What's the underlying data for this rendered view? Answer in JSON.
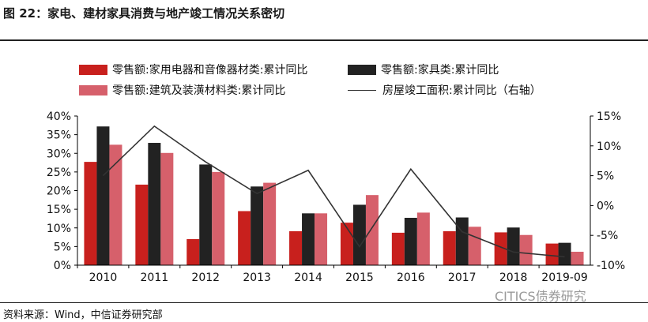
{
  "header": {
    "title": "图 22：家电、建材家具消费与地产竣工情况关系密切"
  },
  "footer": {
    "source": "资料来源：Wind，中信证券研究部",
    "watermark": "CITICS债券研究"
  },
  "colors": {
    "appliance": "#c8201d",
    "furniture": "#222222",
    "building": "#d6606b",
    "completion": "#333333"
  },
  "chart_data": {
    "type": "bar",
    "categories": [
      "2010",
      "2011",
      "2012",
      "2013",
      "2014",
      "2015",
      "2016",
      "2017",
      "2018",
      "2019-09"
    ],
    "series": [
      {
        "name": "零售额:家用电器和音像器材类:累计同比",
        "values": [
          27.7,
          21.6,
          7.0,
          14.5,
          9.1,
          11.4,
          8.7,
          9.1,
          8.8,
          5.8
        ],
        "axis": "left"
      },
      {
        "name": "零售额:家具类:累计同比",
        "values": [
          37.2,
          32.8,
          27.0,
          21.1,
          13.9,
          16.2,
          12.7,
          12.8,
          10.1,
          6.0
        ],
        "axis": "left"
      },
      {
        "name": "零售额:建筑及装潢材料类:累计同比",
        "values": [
          32.3,
          30.1,
          25.0,
          22.1,
          13.9,
          18.8,
          14.1,
          10.3,
          8.1,
          3.6
        ],
        "axis": "left"
      },
      {
        "name": "房屋竣工面积:累计同比（右轴）",
        "type": "line",
        "values": [
          5.0,
          13.3,
          7.3,
          2.0,
          5.9,
          -6.9,
          6.1,
          -4.4,
          -7.8,
          -8.6
        ],
        "axis": "right"
      }
    ],
    "yticks_left": [
      "0%",
      "5%",
      "10%",
      "15%",
      "20%",
      "25%",
      "30%",
      "35%",
      "40%"
    ],
    "yticks_right": [
      "-10%",
      "-5%",
      "0%",
      "5%",
      "10%",
      "15%"
    ],
    "ylim_left": [
      0,
      40
    ],
    "ylim_right": [
      -10,
      15
    ],
    "legend": "top"
  }
}
